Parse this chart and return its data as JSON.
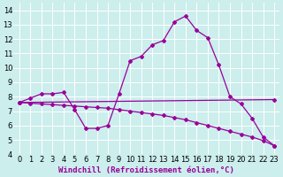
{
  "xlabel": "Windchill (Refroidissement éolien,°C)",
  "bg_color": "#cceeed",
  "line_color": "#990099",
  "grid_color": "#ffffff",
  "xlim": [
    -0.5,
    23.5
  ],
  "ylim": [
    4,
    14.5
  ],
  "xtick_labels": [
    "0",
    "1",
    "2",
    "3",
    "4",
    "5",
    "6",
    "7",
    "8",
    "9",
    "10",
    "11",
    "12",
    "13",
    "14",
    "15",
    "16",
    "17",
    "18",
    "19",
    "20",
    "21",
    "22",
    "23"
  ],
  "ytick_labels": [
    "4",
    "5",
    "6",
    "7",
    "8",
    "9",
    "10",
    "11",
    "12",
    "13",
    "14"
  ],
  "xticks": [
    0,
    1,
    2,
    3,
    4,
    5,
    6,
    7,
    8,
    9,
    10,
    11,
    12,
    13,
    14,
    15,
    16,
    17,
    18,
    19,
    20,
    21,
    22,
    23
  ],
  "yticks": [
    4,
    5,
    6,
    7,
    8,
    9,
    10,
    11,
    12,
    13,
    14
  ],
  "line1_x": [
    0,
    1,
    2,
    3,
    4,
    5,
    6,
    7,
    8,
    9,
    10,
    11,
    12,
    13,
    14,
    15,
    16,
    17,
    18,
    19,
    20,
    21,
    22,
    23
  ],
  "line1_y": [
    7.6,
    7.9,
    8.2,
    8.2,
    8.3,
    7.1,
    5.8,
    5.8,
    6.0,
    8.2,
    10.5,
    10.8,
    11.6,
    11.9,
    13.2,
    13.6,
    12.6,
    12.1,
    10.2,
    8.0,
    7.5,
    6.5,
    5.2,
    4.6
  ],
  "line2_x": [
    0,
    23
  ],
  "line2_y": [
    7.6,
    7.8
  ],
  "line3_x": [
    0,
    1,
    2,
    3,
    4,
    5,
    6,
    7,
    8,
    9,
    10,
    11,
    12,
    13,
    14,
    15,
    16,
    17,
    18,
    19,
    20,
    21,
    22,
    23
  ],
  "line3_y": [
    7.6,
    7.55,
    7.5,
    7.45,
    7.4,
    7.35,
    7.3,
    7.25,
    7.2,
    7.1,
    7.0,
    6.9,
    6.8,
    6.7,
    6.55,
    6.4,
    6.2,
    6.0,
    5.8,
    5.6,
    5.4,
    5.2,
    4.95,
    4.6
  ],
  "marker": "D",
  "markersize": 2.0,
  "linewidth": 0.9,
  "xlabel_fontsize": 6.5,
  "tick_fontsize": 6.0
}
